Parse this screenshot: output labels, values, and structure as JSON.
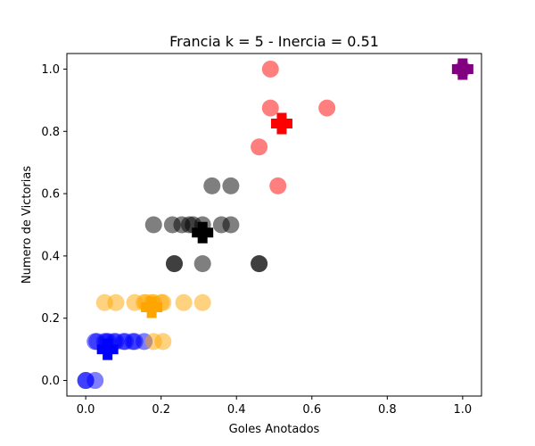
{
  "chart_data": {
    "type": "scatter",
    "title": "Francia k = 5 - Inercia = 0.51",
    "xlabel": "Goles Anotados",
    "ylabel": "Numero de Victorias",
    "xlim": [
      -0.05,
      1.05
    ],
    "ylim": [
      -0.05,
      1.05
    ],
    "xticks": [
      0.0,
      0.2,
      0.4,
      0.6,
      0.8,
      1.0
    ],
    "yticks": [
      0.0,
      0.2,
      0.4,
      0.6,
      0.8,
      1.0
    ],
    "xtick_labels": [
      "0.0",
      "0.2",
      "0.4",
      "0.6",
      "0.8",
      "1.0"
    ],
    "ytick_labels": [
      "0.0",
      "0.2",
      "0.4",
      "0.6",
      "0.8",
      "1.0"
    ],
    "grid": false,
    "series": [
      {
        "color": "#0000ff",
        "alpha": 0.5,
        "points": [
          [
            0.0,
            0.0
          ],
          [
            0.0,
            0.0
          ],
          [
            0.025,
            0.0
          ],
          [
            0.025,
            0.125
          ],
          [
            0.03,
            0.125
          ],
          [
            0.05,
            0.125
          ],
          [
            0.055,
            0.125
          ],
          [
            0.06,
            0.125
          ],
          [
            0.075,
            0.125
          ],
          [
            0.08,
            0.125
          ],
          [
            0.1,
            0.125
          ],
          [
            0.105,
            0.125
          ],
          [
            0.125,
            0.125
          ],
          [
            0.13,
            0.125
          ],
          [
            0.155,
            0.125
          ]
        ],
        "centroid": [
          0.058,
          0.1
        ]
      },
      {
        "color": "#ffa500",
        "alpha": 0.5,
        "points": [
          [
            0.05,
            0.25
          ],
          [
            0.08,
            0.25
          ],
          [
            0.13,
            0.25
          ],
          [
            0.155,
            0.25
          ],
          [
            0.16,
            0.25
          ],
          [
            0.175,
            0.25
          ],
          [
            0.18,
            0.25
          ],
          [
            0.2,
            0.25
          ],
          [
            0.205,
            0.25
          ],
          [
            0.26,
            0.25
          ],
          [
            0.31,
            0.25
          ],
          [
            0.18,
            0.125
          ],
          [
            0.205,
            0.125
          ]
        ],
        "centroid": [
          0.175,
          0.235
        ]
      },
      {
        "color": "#000000",
        "alpha": 0.5,
        "points": [
          [
            0.18,
            0.5
          ],
          [
            0.23,
            0.5
          ],
          [
            0.255,
            0.5
          ],
          [
            0.275,
            0.5
          ],
          [
            0.285,
            0.5
          ],
          [
            0.31,
            0.5
          ],
          [
            0.36,
            0.5
          ],
          [
            0.385,
            0.5
          ],
          [
            0.235,
            0.375
          ],
          [
            0.31,
            0.375
          ],
          [
            0.46,
            0.375
          ],
          [
            0.235,
            0.375
          ],
          [
            0.46,
            0.375
          ],
          [
            0.335,
            0.625
          ],
          [
            0.385,
            0.625
          ]
        ],
        "centroid": [
          0.31,
          0.475
        ]
      },
      {
        "color": "#ff0000",
        "alpha": 0.5,
        "points": [
          [
            0.49,
            1.0
          ],
          [
            0.49,
            0.875
          ],
          [
            0.64,
            0.875
          ],
          [
            0.46,
            0.75
          ],
          [
            0.51,
            0.625
          ]
        ],
        "centroid": [
          0.52,
          0.825
        ]
      },
      {
        "color": "#800080",
        "alpha": 0.5,
        "points": [
          [
            1.0,
            1.0
          ]
        ],
        "centroid": [
          1.0,
          1.0
        ]
      }
    ]
  }
}
